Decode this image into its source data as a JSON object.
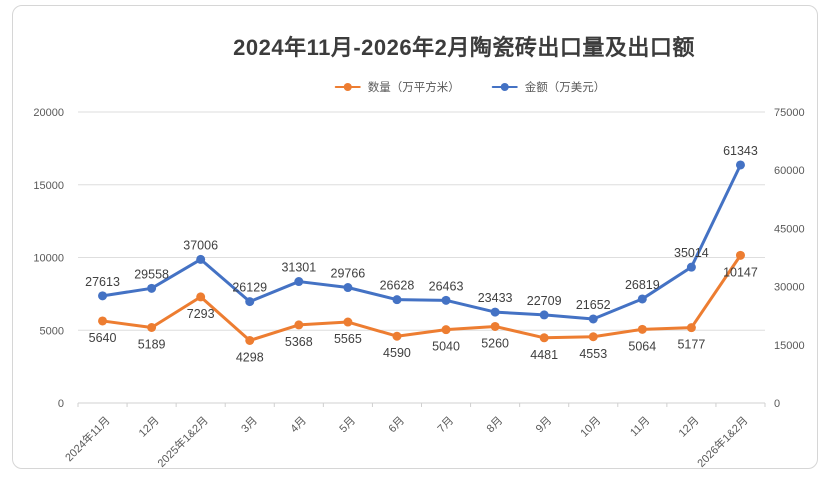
{
  "chart_data": {
    "type": "line",
    "title": "2024年11月-2026年2月陶瓷砖出口量及出口额",
    "categories": [
      "2024年11月",
      "12月",
      "2025年1&2月",
      "3月",
      "4月",
      "5月",
      "6月",
      "7月",
      "8月",
      "9月",
      "10月",
      "11月",
      "12月",
      "2026年1&2月"
    ],
    "series": [
      {
        "name": "数量（万平方米）",
        "slug": "quantity",
        "color": "#ED7D31",
        "axis": "left",
        "label_position": "below",
        "values": [
          5640,
          5189,
          7293,
          4298,
          5368,
          5565,
          4590,
          5040,
          5260,
          4481,
          4553,
          5064,
          5177,
          10147
        ]
      },
      {
        "name": "金额（万美元）",
        "slug": "amount",
        "color": "#4472C4",
        "axis": "right",
        "label_position": "above",
        "values": [
          27613,
          29558,
          37006,
          26129,
          31301,
          29766,
          26628,
          26463,
          23433,
          22709,
          21652,
          26819,
          35014,
          61343
        ]
      }
    ],
    "left_axis": {
      "min": 0,
      "max": 20000,
      "step": 5000,
      "ticks": [
        0,
        5000,
        10000,
        15000,
        20000
      ]
    },
    "right_axis": {
      "min": 0,
      "max": 75000,
      "step": 15000,
      "ticks": [
        0,
        15000,
        30000,
        45000,
        60000,
        75000
      ]
    },
    "grid": true,
    "data_labels": true,
    "legend_position": "top",
    "colors": {
      "gridline": "#dedede",
      "axis_line": "#d0d0d0",
      "axis_text": "#595959",
      "label_text": "#404040"
    }
  }
}
